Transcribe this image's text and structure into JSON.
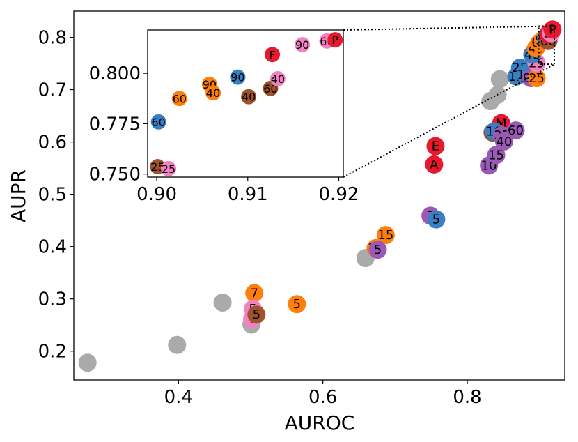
{
  "chart_data": {
    "type": "scatter",
    "xlabel": "AUROC",
    "ylabel": "AUPR",
    "xlim": [
      0.255,
      0.935
    ],
    "ylim": [
      0.145,
      0.85
    ],
    "xticks": [
      "0.4",
      "0.6",
      "0.8"
    ],
    "yticks": [
      "0.2",
      "0.3",
      "0.4",
      "0.5",
      "0.6",
      "0.7",
      "0.8"
    ],
    "grid": false,
    "colors": {
      "gray": "#aaaaaa",
      "orange": "#ff7f0e",
      "pink": "#f281c2",
      "brown": "#a0522d",
      "purple": "#9b59b6",
      "blue": "#3a7fc1",
      "red": "#e8192c"
    },
    "points": [
      {
        "x": 0.274,
        "y": 0.178,
        "label": "",
        "color": "gray"
      },
      {
        "x": 0.398,
        "y": 0.212,
        "label": "",
        "color": "gray"
      },
      {
        "x": 0.461,
        "y": 0.293,
        "label": "",
        "color": "gray"
      },
      {
        "x": 0.501,
        "y": 0.251,
        "label": "",
        "color": "gray"
      },
      {
        "x": 0.659,
        "y": 0.378,
        "label": "",
        "color": "gray"
      },
      {
        "x": 0.832,
        "y": 0.678,
        "label": "",
        "color": "gray"
      },
      {
        "x": 0.842,
        "y": 0.69,
        "label": "",
        "color": "gray"
      },
      {
        "x": 0.845,
        "y": 0.72,
        "label": "",
        "color": "gray"
      },
      {
        "x": 0.505,
        "y": 0.311,
        "label": "7",
        "color": "orange"
      },
      {
        "x": 0.564,
        "y": 0.29,
        "label": "5",
        "color": "orange"
      },
      {
        "x": 0.673,
        "y": 0.397,
        "label": "10",
        "color": "orange"
      },
      {
        "x": 0.687,
        "y": 0.422,
        "label": "15",
        "color": "orange"
      },
      {
        "x": 0.503,
        "y": 0.281,
        "label": "5",
        "color": "pink"
      },
      {
        "x": 0.502,
        "y": 0.262,
        "label": "7",
        "color": "pink"
      },
      {
        "x": 0.508,
        "y": 0.27,
        "label": "5",
        "color": "brown"
      },
      {
        "x": 0.676,
        "y": 0.394,
        "label": "5",
        "color": "purple"
      },
      {
        "x": 0.749,
        "y": 0.459,
        "label": "7",
        "color": "purple"
      },
      {
        "x": 0.757,
        "y": 0.452,
        "label": "5",
        "color": "blue"
      },
      {
        "x": 0.754,
        "y": 0.557,
        "label": "A",
        "color": "red"
      },
      {
        "x": 0.756,
        "y": 0.592,
        "label": "E",
        "color": "red"
      },
      {
        "x": 0.835,
        "y": 0.618,
        "label": "10",
        "color": "brown"
      },
      {
        "x": 0.847,
        "y": 0.636,
        "label": "M",
        "color": "red"
      },
      {
        "x": 0.837,
        "y": 0.62,
        "label": "10",
        "color": "blue"
      },
      {
        "x": 0.83,
        "y": 0.555,
        "label": "10",
        "color": "purple"
      },
      {
        "x": 0.84,
        "y": 0.575,
        "label": "15",
        "color": "purple"
      },
      {
        "x": 0.848,
        "y": 0.613,
        "label": "25",
        "color": "purple"
      },
      {
        "x": 0.851,
        "y": 0.601,
        "label": "40",
        "color": "purple"
      },
      {
        "x": 0.867,
        "y": 0.622,
        "label": "60",
        "color": "purple"
      },
      {
        "x": 0.868,
        "y": 0.725,
        "label": "15",
        "color": "blue"
      },
      {
        "x": 0.873,
        "y": 0.742,
        "label": "25",
        "color": "blue"
      },
      {
        "x": 0.88,
        "y": 0.729,
        "label": "15",
        "color": "blue"
      },
      {
        "x": 0.888,
        "y": 0.722,
        "label": "90",
        "color": "purple"
      },
      {
        "x": 0.896,
        "y": 0.722,
        "label": "25",
        "color": "orange"
      },
      {
        "x": 0.896,
        "y": 0.751,
        "label": "25",
        "color": "pink"
      },
      {
        "x": 0.89,
        "y": 0.767,
        "label": "40",
        "color": "blue"
      },
      {
        "x": 0.895,
        "y": 0.779,
        "label": "40",
        "color": "orange"
      },
      {
        "x": 0.9,
        "y": 0.79,
        "label": "60",
        "color": "orange"
      },
      {
        "x": 0.905,
        "y": 0.795,
        "label": "90",
        "color": "orange"
      },
      {
        "x": 0.909,
        "y": 0.798,
        "label": "90",
        "color": "blue"
      },
      {
        "x": 0.913,
        "y": 0.795,
        "label": "40",
        "color": "pink"
      },
      {
        "x": 0.912,
        "y": 0.793,
        "label": "60",
        "color": "brown"
      },
      {
        "x": 0.912,
        "y": 0.806,
        "label": "F",
        "color": "red"
      },
      {
        "x": 0.916,
        "y": 0.808,
        "label": "90",
        "color": "pink"
      },
      {
        "x": 0.918,
        "y": 0.815,
        "label": "P",
        "color": "red"
      }
    ],
    "inset": {
      "xlim": [
        0.899,
        0.9205
      ],
      "ylim": [
        0.7485,
        0.8215
      ],
      "xticks": [
        "0.90",
        "0.91",
        "0.92"
      ],
      "yticks": [
        "0.750",
        "0.775",
        "0.800"
      ],
      "points": [
        {
          "x": 0.9002,
          "y": 0.7759,
          "label": "60",
          "color": "blue"
        },
        {
          "x": 0.9001,
          "y": 0.7537,
          "label": "25",
          "color": "brown"
        },
        {
          "x": 0.9013,
          "y": 0.7527,
          "label": "25",
          "color": "pink"
        },
        {
          "x": 0.9025,
          "y": 0.7875,
          "label": "60",
          "color": "orange"
        },
        {
          "x": 0.9058,
          "y": 0.7945,
          "label": "90",
          "color": "orange"
        },
        {
          "x": 0.9062,
          "y": 0.7903,
          "label": "40",
          "color": "orange"
        },
        {
          "x": 0.9089,
          "y": 0.7981,
          "label": "90",
          "color": "blue"
        },
        {
          "x": 0.9101,
          "y": 0.7884,
          "label": "40",
          "color": "brown"
        },
        {
          "x": 0.9125,
          "y": 0.7925,
          "label": "60",
          "color": "brown"
        },
        {
          "x": 0.9133,
          "y": 0.7973,
          "label": "40",
          "color": "pink"
        },
        {
          "x": 0.9127,
          "y": 0.8093,
          "label": "F",
          "color": "red"
        },
        {
          "x": 0.916,
          "y": 0.8142,
          "label": "90",
          "color": "pink"
        },
        {
          "x": 0.9187,
          "y": 0.816,
          "label": "60",
          "color": "pink"
        },
        {
          "x": 0.9196,
          "y": 0.8166,
          "label": "P",
          "color": "red"
        }
      ]
    }
  }
}
